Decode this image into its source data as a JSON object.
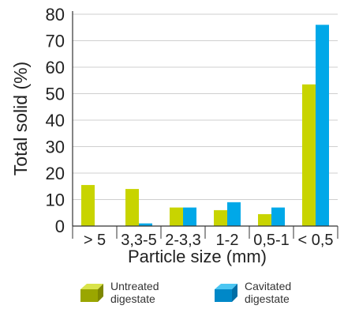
{
  "chart_data": {
    "type": "bar",
    "xlabel": "Particle size (mm)",
    "ylabel": "Total solid (%)",
    "ylim": [
      0,
      80
    ],
    "yticks": [
      0,
      10,
      20,
      30,
      40,
      50,
      60,
      70,
      80
    ],
    "grid": true,
    "legend": "bottom",
    "categories": [
      "> 5",
      "3,3-5",
      "2-3,3",
      "1-2",
      "0,5-1",
      "< 0,5"
    ],
    "series": [
      {
        "name": "Untreated digestate",
        "color": "#c8d400",
        "values": [
          15.5,
          14,
          7,
          6,
          4.5,
          53.5
        ]
      },
      {
        "name": "Cavitated digestate",
        "color": "#00a8e8",
        "values": [
          0,
          1,
          7,
          9,
          7,
          76
        ]
      }
    ]
  },
  "legend": {
    "untreated_line1": "Untreated",
    "untreated_line2": "digestate",
    "cavitated_line1": "Cavitated",
    "cavitated_line2": "digestate"
  }
}
